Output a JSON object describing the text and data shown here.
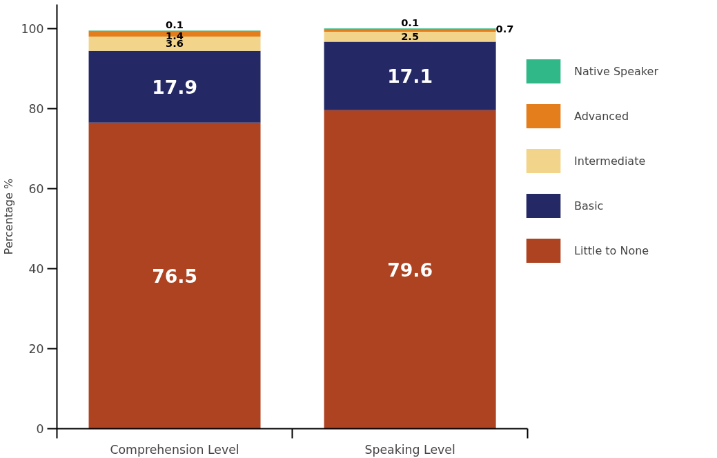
{
  "chart_data": {
    "type": "bar",
    "stacked": true,
    "ylabel": "Percentage %",
    "categories": [
      "Comprehension Level",
      "Speaking Level"
    ],
    "series": [
      {
        "name": "Little to None",
        "color": "#ae4322",
        "values": [
          76.5,
          79.6
        ]
      },
      {
        "name": "Basic",
        "color": "#242966",
        "values": [
          17.9,
          17.1
        ]
      },
      {
        "name": "Intermediate",
        "color": "#f2d48b",
        "values": [
          3.6,
          2.5
        ]
      },
      {
        "name": "Advanced",
        "color": "#e47e1c",
        "values": [
          1.4,
          0.7
        ]
      },
      {
        "name": "Native Speaker",
        "color": "#30b888",
        "values": [
          0.1,
          0.1
        ]
      }
    ],
    "ylim": [
      0,
      106
    ],
    "yticks": [
      0,
      20,
      40,
      60,
      80,
      100
    ],
    "data_labels": true,
    "grid": false,
    "legend": "right"
  }
}
